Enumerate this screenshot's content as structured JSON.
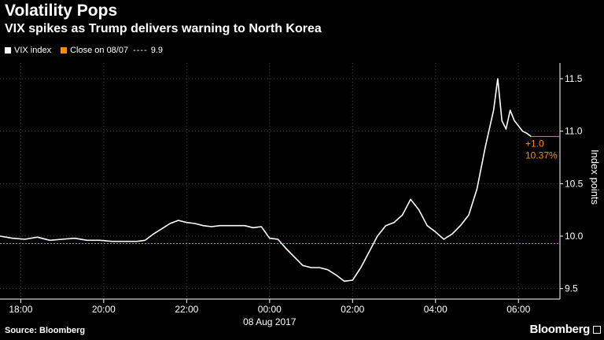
{
  "chart_data": {
    "type": "line",
    "title": "Volatility Pops",
    "subtitle": "VIX spikes as Trump delivers warning to North Korea",
    "ylabel": "Index points",
    "xlabel": "",
    "ylim": [
      9.4,
      11.65
    ],
    "xlim": [
      -6.5,
      7.0
    ],
    "y_ticks": [
      9.5,
      10.0,
      10.5,
      11.0,
      11.5
    ],
    "y_tick_labels": [
      "9.5",
      "10.0",
      "10.5",
      "11.0",
      "11.5"
    ],
    "x_ticks": [
      -6,
      -4,
      -2,
      0,
      2,
      4,
      6
    ],
    "x_tick_labels": [
      "18:00",
      "20:00",
      "22:00",
      "00:00",
      "02:00",
      "04:00",
      "06:00"
    ],
    "date_label": "08 Aug 2017",
    "grid": true,
    "legend_position": "top-left",
    "legend": {
      "series_label": "VIX index",
      "close_label": "Close on 08/07",
      "close_dashes": "----",
      "close_value": "9.9"
    },
    "reference_line": {
      "label": "Close on 08/07",
      "value": 9.93,
      "color": "#ff8c00"
    },
    "annotation": {
      "change": "+1.0",
      "percent": "10.37%"
    },
    "series": [
      {
        "name": "VIX index",
        "color": "#ffffff",
        "x": [
          -6.5,
          -6.2,
          -5.9,
          -5.6,
          -5.3,
          -5.0,
          -4.7,
          -4.4,
          -4.1,
          -3.8,
          -3.5,
          -3.2,
          -3.0,
          -2.8,
          -2.6,
          -2.4,
          -2.2,
          -2.0,
          -1.8,
          -1.6,
          -1.4,
          -1.2,
          -1.0,
          -0.8,
          -0.6,
          -0.4,
          -0.2,
          0.0,
          0.2,
          0.4,
          0.6,
          0.8,
          1.0,
          1.2,
          1.4,
          1.6,
          1.8,
          2.0,
          2.2,
          2.4,
          2.6,
          2.8,
          3.0,
          3.2,
          3.4,
          3.6,
          3.8,
          4.0,
          4.2,
          4.4,
          4.6,
          4.8,
          5.0,
          5.2,
          5.4,
          5.5,
          5.6,
          5.7,
          5.8,
          5.9,
          6.0,
          6.1,
          6.2,
          6.3
        ],
        "values": [
          10.0,
          9.98,
          9.97,
          9.99,
          9.96,
          9.97,
          9.98,
          9.96,
          9.96,
          9.95,
          9.95,
          9.95,
          9.96,
          10.02,
          10.07,
          10.12,
          10.15,
          10.13,
          10.12,
          10.1,
          10.09,
          10.1,
          10.1,
          10.1,
          10.1,
          10.08,
          10.09,
          9.98,
          9.97,
          9.88,
          9.8,
          9.72,
          9.7,
          9.7,
          9.68,
          9.63,
          9.57,
          9.58,
          9.7,
          9.85,
          10.0,
          10.1,
          10.13,
          10.2,
          10.35,
          10.25,
          10.1,
          10.04,
          9.97,
          10.02,
          10.1,
          10.2,
          10.45,
          10.85,
          11.2,
          11.5,
          11.1,
          11.02,
          11.2,
          11.1,
          11.05,
          11.0,
          10.98,
          10.95
        ]
      }
    ]
  }
}
